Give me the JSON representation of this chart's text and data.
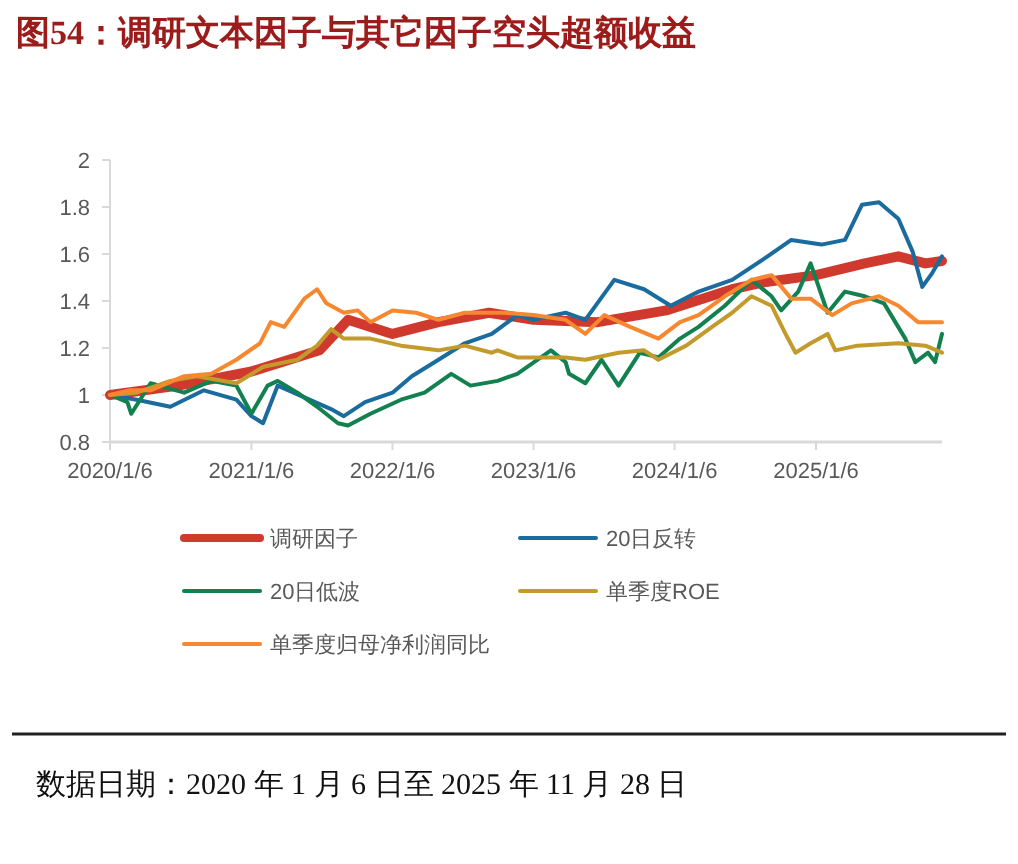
{
  "chart_data": {
    "type": "line",
    "title": "图54：调研文本因子与其它因子空头超额收益",
    "annotations": [
      "数据日期：2020 年 1 月 6 日至 2025 年 11 月 28 日"
    ],
    "legend": "bottom",
    "grid": false,
    "marker": "none",
    "line_style": "solid",
    "xlim": [
      "2020-01-06",
      "2025-11-28"
    ],
    "xticks": [
      {
        "value": "2020-01-06",
        "label": "2020/1/6"
      },
      {
        "value": "2021-01-06",
        "label": "2021/1/6"
      },
      {
        "value": "2022-01-06",
        "label": "2022/1/6"
      },
      {
        "value": "2023-01-06",
        "label": "2023/1/6"
      },
      {
        "value": "2024-01-06",
        "label": "2024/1/6"
      },
      {
        "value": "2025-01-06",
        "label": "2025/1/6"
      }
    ],
    "ylim": [
      0.8,
      2
    ],
    "yticks": [
      0.8,
      1,
      1.2,
      1.4,
      1.6,
      1.8,
      2
    ],
    "series": [
      {
        "name": "调研因子",
        "color": "#d0392e",
        "x": [
          "2020-01-06",
          "2020-07-01",
          "2021-01-06",
          "2021-07-01",
          "2021-09-13",
          "2022-01-06",
          "2022-05-05",
          "2022-09-13",
          "2023-01-06",
          "2023-06-21",
          "2023-12-15",
          "2024-06-03",
          "2024-08-25",
          "2025-01-06",
          "2025-05-12",
          "2025-08-07",
          "2025-10-16",
          "2025-11-28"
        ],
        "values": [
          1.0,
          1.04,
          1.1,
          1.19,
          1.32,
          1.26,
          1.31,
          1.35,
          1.32,
          1.31,
          1.36,
          1.45,
          1.48,
          1.51,
          1.56,
          1.59,
          1.56,
          1.57
        ]
      },
      {
        "name": "20日反转",
        "color": "#1a6b9e",
        "x": [
          "2020-01-06",
          "2020-03-15",
          "2020-06-10",
          "2020-09-05",
          "2020-11-28",
          "2021-01-06",
          "2021-02-05",
          "2021-03-15",
          "2021-05-23",
          "2021-07-31",
          "2021-09-02",
          "2021-10-27",
          "2022-01-06",
          "2022-02-25",
          "2022-05-05",
          "2022-07-12",
          "2022-09-20",
          "2022-11-25",
          "2023-01-06",
          "2023-03-30",
          "2023-05-20",
          "2023-08-03",
          "2023-10-19",
          "2023-12-27",
          "2024-03-08",
          "2024-06-03",
          "2024-08-25",
          "2024-11-03",
          "2025-01-20",
          "2025-03-22",
          "2025-05-05",
          "2025-06-18",
          "2025-08-07",
          "2025-09-13",
          "2025-10-08",
          "2025-11-03",
          "2025-11-28"
        ],
        "values": [
          1.0,
          0.98,
          0.95,
          1.02,
          0.98,
          0.91,
          0.88,
          1.04,
          0.99,
          0.94,
          0.91,
          0.97,
          1.01,
          1.08,
          1.15,
          1.22,
          1.26,
          1.34,
          1.32,
          1.35,
          1.32,
          1.49,
          1.45,
          1.38,
          1.44,
          1.49,
          1.58,
          1.66,
          1.64,
          1.66,
          1.81,
          1.82,
          1.75,
          1.61,
          1.46,
          1.52,
          1.59
        ]
      },
      {
        "name": "20日低波",
        "color": "#12804f",
        "x": [
          "2020-01-06",
          "2020-02-20",
          "2020-03-01",
          "2020-04-20",
          "2020-07-16",
          "2020-09-24",
          "2020-11-28",
          "2021-01-06",
          "2021-02-17",
          "2021-03-15",
          "2021-05-05",
          "2021-06-25",
          "2021-08-18",
          "2021-09-13",
          "2021-11-10",
          "2022-01-28",
          "2022-03-30",
          "2022-06-07",
          "2022-07-27",
          "2022-10-05",
          "2022-11-25",
          "2023-02-20",
          "2023-03-30",
          "2023-04-08",
          "2023-05-20",
          "2023-07-01",
          "2023-08-14",
          "2023-10-08",
          "2023-11-25",
          "2024-01-20",
          "2024-03-08",
          "2024-05-15",
          "2024-07-23",
          "2024-09-13",
          "2024-10-08",
          "2024-11-21",
          "2024-12-23",
          "2025-02-05",
          "2025-03-22",
          "2025-05-12",
          "2025-07-01",
          "2025-08-25",
          "2025-09-20",
          "2025-10-23",
          "2025-11-10",
          "2025-11-28"
        ],
        "values": [
          1.0,
          0.97,
          0.92,
          1.05,
          1.01,
          1.06,
          1.04,
          0.92,
          1.04,
          1.06,
          1.01,
          0.95,
          0.88,
          0.87,
          0.92,
          0.98,
          1.01,
          1.09,
          1.04,
          1.06,
          1.09,
          1.19,
          1.14,
          1.09,
          1.05,
          1.15,
          1.04,
          1.18,
          1.16,
          1.24,
          1.29,
          1.38,
          1.49,
          1.42,
          1.36,
          1.44,
          1.56,
          1.35,
          1.44,
          1.42,
          1.39,
          1.24,
          1.14,
          1.18,
          1.14,
          1.26
        ]
      },
      {
        "name": "单季度ROE",
        "color": "#c29b2c",
        "x": [
          "2020-01-06",
          "2020-03-15",
          "2020-06-10",
          "2020-08-18",
          "2020-11-28",
          "2021-02-06",
          "2021-05-05",
          "2021-06-25",
          "2021-07-31",
          "2021-09-02",
          "2021-11-10",
          "2022-01-28",
          "2022-05-05",
          "2022-07-12",
          "2022-09-20",
          "2022-10-05",
          "2022-11-25",
          "2023-01-20",
          "2023-03-30",
          "2023-05-20",
          "2023-08-14",
          "2023-10-19",
          "2023-11-25",
          "2024-02-05",
          "2024-04-12",
          "2024-06-03",
          "2024-07-23",
          "2024-09-13",
          "2024-10-19",
          "2024-11-14",
          "2024-12-23",
          "2025-02-05",
          "2025-02-25",
          "2025-04-23",
          "2025-08-07",
          "2025-10-16",
          "2025-11-28"
        ],
        "values": [
          1.0,
          1.01,
          1.06,
          1.08,
          1.05,
          1.12,
          1.15,
          1.21,
          1.28,
          1.24,
          1.24,
          1.21,
          1.19,
          1.21,
          1.18,
          1.19,
          1.16,
          1.16,
          1.16,
          1.15,
          1.18,
          1.19,
          1.15,
          1.21,
          1.29,
          1.35,
          1.42,
          1.38,
          1.26,
          1.18,
          1.22,
          1.26,
          1.19,
          1.21,
          1.22,
          1.21,
          1.18
        ]
      },
      {
        "name": "单季度归母净利润同比",
        "color": "#f7882f",
        "x": [
          "2020-01-06",
          "2020-02-28",
          "2020-04-20",
          "2020-07-16",
          "2020-09-24",
          "2020-11-28",
          "2021-01-28",
          "2021-02-25",
          "2021-04-01",
          "2021-05-23",
          "2021-06-25",
          "2021-07-19",
          "2021-09-02",
          "2021-10-08",
          "2021-11-10",
          "2022-01-06",
          "2022-03-08",
          "2022-05-05",
          "2022-07-12",
          "2022-10-23",
          "2023-01-06",
          "2023-03-30",
          "2023-05-20",
          "2023-07-08",
          "2023-09-13",
          "2023-11-25",
          "2024-01-20",
          "2024-03-08",
          "2024-05-15",
          "2024-07-23",
          "2024-09-13",
          "2024-11-03",
          "2024-12-23",
          "2025-02-17",
          "2025-04-08",
          "2025-06-18",
          "2025-08-07",
          "2025-09-27",
          "2025-11-28"
        ],
        "values": [
          1.0,
          1.02,
          1.02,
          1.08,
          1.09,
          1.15,
          1.22,
          1.31,
          1.29,
          1.41,
          1.45,
          1.39,
          1.35,
          1.36,
          1.31,
          1.36,
          1.35,
          1.32,
          1.35,
          1.35,
          1.34,
          1.32,
          1.26,
          1.34,
          1.29,
          1.24,
          1.31,
          1.34,
          1.42,
          1.49,
          1.51,
          1.41,
          1.41,
          1.34,
          1.39,
          1.42,
          1.38,
          1.31,
          1.31
        ]
      }
    ]
  }
}
